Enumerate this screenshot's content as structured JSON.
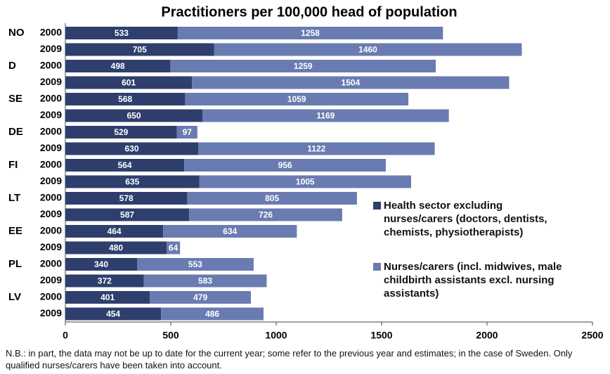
{
  "chart_data": {
    "type": "stacked-barh",
    "title": "Practitioners per 100,000 head of population",
    "groups": [
      "NO",
      "D",
      "SE",
      "DE",
      "FI",
      "LT",
      "EE",
      "PL",
      "LV"
    ],
    "categories": [
      "2000",
      "2009",
      "2000",
      "2009",
      "2000",
      "2009",
      "2000",
      "2009",
      "2000",
      "2009",
      "2000",
      "2009",
      "2000",
      "2009",
      "2000",
      "2009",
      "2000",
      "2009"
    ],
    "series": [
      {
        "name": "Health sector excluding nurses/carers (doctors, dentists, chemists, physiotherapists)",
        "color": "#2e3f6e",
        "values": [
          533,
          705,
          498,
          601,
          568,
          650,
          529,
          630,
          564,
          635,
          578,
          587,
          464,
          480,
          340,
          372,
          401,
          454
        ]
      },
      {
        "name": "Nurses/carers (incl. midwives, male childbirth assistants excl. nursing assistants)",
        "color": "#6a7bb1",
        "values": [
          1258,
          1460,
          1259,
          1504,
          1059,
          1169,
          97,
          1122,
          956,
          1005,
          805,
          726,
          634,
          64,
          553,
          583,
          479,
          486
        ]
      }
    ],
    "xlim": [
      0,
      2500
    ],
    "xticks": [
      0,
      500,
      1000,
      1500,
      2000,
      2500
    ],
    "note": "N.B.: in part, the data may not be up to date for the current year; some refer to the previous year and estimates; in the case of Sweden. Only qualified nurses/carers have been taken into account."
  }
}
